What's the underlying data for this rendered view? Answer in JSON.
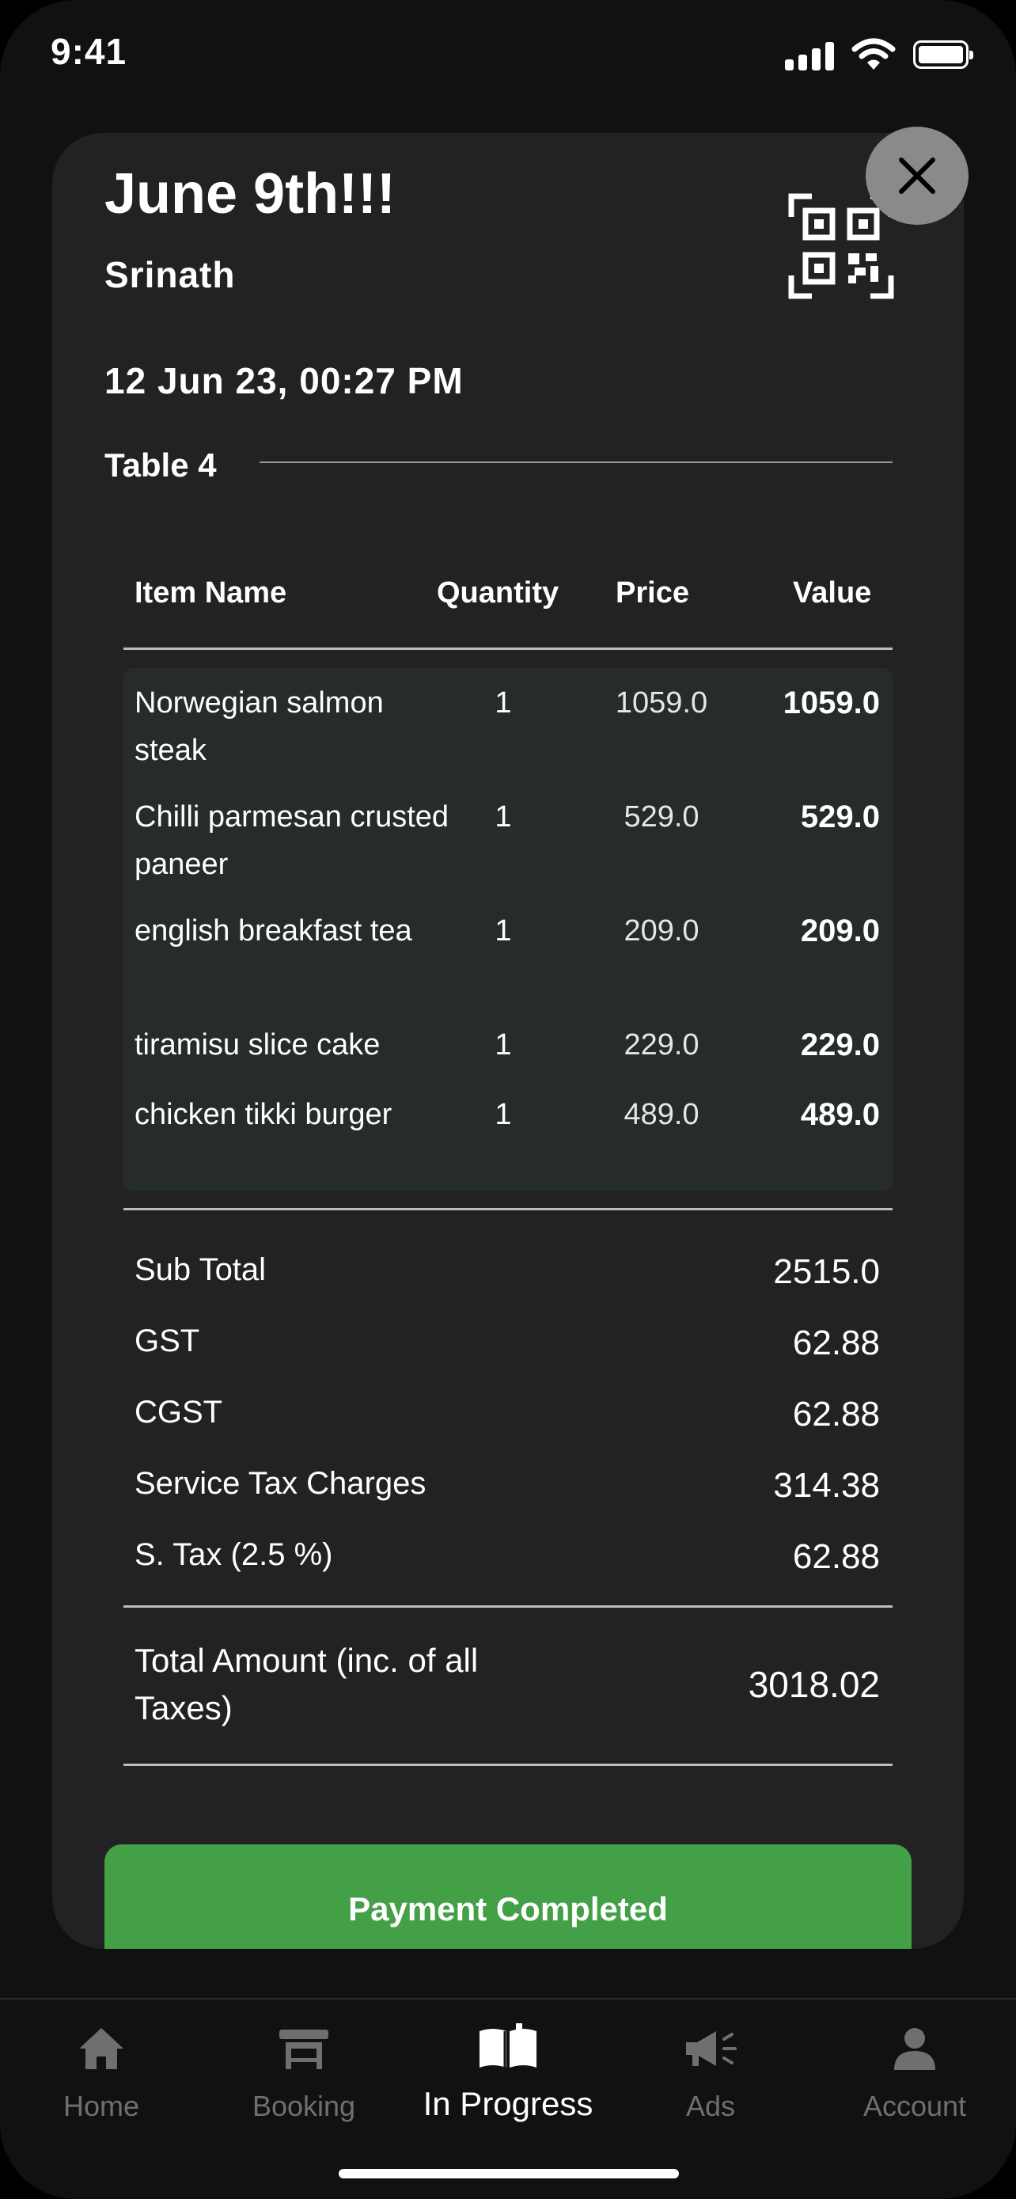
{
  "status_bar": {
    "time": "9:41"
  },
  "order": {
    "title": "June 9th!!!",
    "customer": "Srinath",
    "datetime": "12 Jun 23, 00:27 PM",
    "table": "Table 4"
  },
  "columns": {
    "item": "Item Name",
    "qty": "Quantity",
    "price": "Price",
    "value": "Value"
  },
  "items": [
    {
      "name": "Norwegian salmon steak",
      "qty": "1",
      "price": "1059.0",
      "value": "1059.0"
    },
    {
      "name": "Chilli parmesan crusted paneer",
      "qty": "1",
      "price": "529.0",
      "value": "529.0"
    },
    {
      "name": "english breakfast tea",
      "qty": "1",
      "price": "209.0",
      "value": "209.0"
    },
    {
      "name": "tiramisu slice cake",
      "qty": "1",
      "price": "229.0",
      "value": "229.0"
    },
    {
      "name": "chicken tikki burger",
      "qty": "1",
      "price": "489.0",
      "value": "489.0"
    }
  ],
  "summary": [
    {
      "label": "Sub Total",
      "value": "2515.0"
    },
    {
      "label": "GST",
      "value": "62.88"
    },
    {
      "label": "CGST",
      "value": "62.88"
    },
    {
      "label": "Service Tax Charges",
      "value": "314.38"
    },
    {
      "label": "S. Tax  (2.5 %)",
      "value": "62.88"
    }
  ],
  "total": {
    "label": "Total Amount (inc. of all Taxes)",
    "value": "3018.02"
  },
  "payment_button": "Payment Completed",
  "tabs": [
    {
      "label": "Home",
      "icon": "home-icon"
    },
    {
      "label": "Booking",
      "icon": "table-icon"
    },
    {
      "label": "In Progress",
      "icon": "open-book-icon"
    },
    {
      "label": "Ads",
      "icon": "megaphone-icon"
    },
    {
      "label": "Account",
      "icon": "person-icon"
    }
  ],
  "colors": {
    "card": "#222225",
    "items_bg": "#262d28",
    "accent_green": "#43a047",
    "inactive_tab": "#6f6f6f"
  }
}
